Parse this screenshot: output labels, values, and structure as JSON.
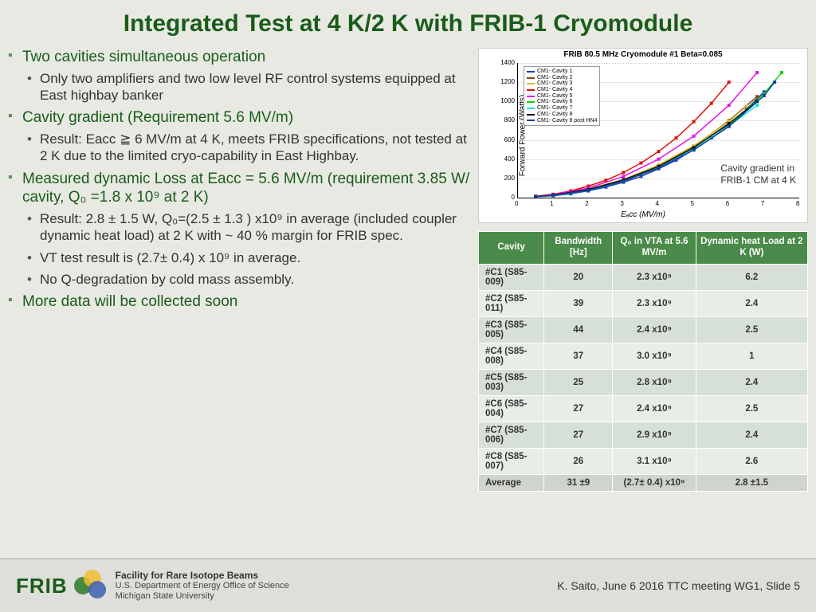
{
  "title": "Integrated Test at 4 K/2 K with FRIB-1 Cryomodule",
  "bullets": {
    "b1": "Two cavities simultaneous operation",
    "b1_1": "Only two amplifiers and two low level RF control systems equipped at East highbay banker",
    "b2": "Cavity gradient (Requirement 5.6 MV/m)",
    "b2_1": "Result: Eacc ≧ 6 MV/m at 4 K, meets FRIB specifications, not tested at 2 K due to the limited cryo-capability in East Highbay.",
    "b3": "Measured dynamic Loss at Eacc = 5.6 MV/m (requirement 3.85 W/ cavity, Q₀ =1.8 x 10⁹ at 2 K)",
    "b3_1": "Result: 2.8 ± 1.5 W, Q₀=(2.5 ± 1.3 ) x10⁹ in average (included coupler dynamic heat load) at 2 K with ~ 40 % margin for FRIB spec.",
    "b3_2": "VT test result is (2.7± 0.4) x 10⁹ in average.",
    "b3_3": "No Q-degradation by cold mass assembly.",
    "b4": "More data will be collected soon"
  },
  "chart": {
    "title": "FRIB 80.5 MHz Cryomodule #1 Beta=0.085",
    "ylabel": "Forward Power (Watts)",
    "xlabel": "Eₐcc (MV/m)",
    "xlim": [
      0,
      8
    ],
    "ylim": [
      0,
      1400
    ],
    "xticks": [
      0,
      1,
      2,
      3,
      4,
      5,
      6,
      7,
      8
    ],
    "yticks": [
      0,
      200,
      400,
      600,
      800,
      1000,
      1200,
      1400
    ],
    "legend_items": [
      {
        "label": "CM1- Cavity 1",
        "color": "#1f3fbf"
      },
      {
        "label": "CM1- Cavity 2",
        "color": "#8b4513"
      },
      {
        "label": "CM1- Cavity 3",
        "color": "#d4c030"
      },
      {
        "label": "CM1- Cavity 4",
        "color": "#e01010"
      },
      {
        "label": "CM1- Cavity 5",
        "color": "#e810e8"
      },
      {
        "label": "CM1- Cavity 6",
        "color": "#10d010"
      },
      {
        "label": "CM1- Cavity 7",
        "color": "#10e0e0"
      },
      {
        "label": "CM1- Cavity 8",
        "color": "#101010"
      },
      {
        "label": "CM1- Cavity 8 post HN4",
        "color": "#1040a0"
      }
    ],
    "series": [
      {
        "color": "#1f3fbf",
        "pts": [
          [
            0.5,
            8
          ],
          [
            1,
            20
          ],
          [
            1.5,
            40
          ],
          [
            2,
            70
          ],
          [
            2.5,
            110
          ],
          [
            3,
            160
          ],
          [
            3.5,
            220
          ],
          [
            4,
            300
          ],
          [
            4.5,
            390
          ],
          [
            5,
            500
          ],
          [
            5.5,
            620
          ],
          [
            6,
            760
          ],
          [
            6.5,
            920
          ],
          [
            7,
            1100
          ]
        ]
      },
      {
        "color": "#8b4513",
        "pts": [
          [
            0.5,
            10
          ],
          [
            1,
            25
          ],
          [
            2,
            80
          ],
          [
            3,
            180
          ],
          [
            4,
            330
          ],
          [
            5,
            530
          ],
          [
            6,
            800
          ],
          [
            6.8,
            1050
          ]
        ]
      },
      {
        "color": "#d4c030",
        "pts": [
          [
            0.5,
            12
          ],
          [
            1,
            28
          ],
          [
            2,
            90
          ],
          [
            3,
            190
          ],
          [
            4,
            340
          ],
          [
            5,
            540
          ],
          [
            6,
            790
          ],
          [
            6.5,
            950
          ]
        ]
      },
      {
        "color": "#e01010",
        "pts": [
          [
            0.5,
            15
          ],
          [
            1,
            35
          ],
          [
            1.5,
            70
          ],
          [
            2,
            120
          ],
          [
            2.5,
            180
          ],
          [
            3,
            260
          ],
          [
            3.5,
            360
          ],
          [
            4,
            480
          ],
          [
            4.5,
            620
          ],
          [
            5,
            790
          ],
          [
            5.5,
            980
          ],
          [
            6,
            1200
          ]
        ]
      },
      {
        "color": "#e810e8",
        "pts": [
          [
            0.5,
            10
          ],
          [
            1,
            30
          ],
          [
            2,
            100
          ],
          [
            3,
            220
          ],
          [
            4,
            400
          ],
          [
            5,
            640
          ],
          [
            6,
            960
          ],
          [
            6.8,
            1300
          ]
        ]
      },
      {
        "color": "#10d010",
        "pts": [
          [
            0.5,
            8
          ],
          [
            1,
            22
          ],
          [
            2,
            75
          ],
          [
            3,
            170
          ],
          [
            4,
            310
          ],
          [
            5,
            500
          ],
          [
            6,
            750
          ],
          [
            7,
            1080
          ],
          [
            7.5,
            1300
          ]
        ]
      },
      {
        "color": "#10e0e0",
        "pts": [
          [
            0.5,
            9
          ],
          [
            1,
            24
          ],
          [
            2,
            78
          ],
          [
            3,
            175
          ],
          [
            4,
            315
          ],
          [
            5,
            505
          ],
          [
            6,
            745
          ],
          [
            6.8,
            960
          ]
        ]
      },
      {
        "color": "#101010",
        "pts": [
          [
            0.5,
            11
          ],
          [
            1,
            26
          ],
          [
            2,
            85
          ],
          [
            3,
            185
          ],
          [
            4,
            325
          ],
          [
            5,
            520
          ],
          [
            6,
            770
          ],
          [
            6.8,
            1000
          ]
        ]
      },
      {
        "color": "#1040a0",
        "pts": [
          [
            0.5,
            10
          ],
          [
            1,
            23
          ],
          [
            2,
            76
          ],
          [
            3,
            172
          ],
          [
            4,
            308
          ],
          [
            5,
            495
          ],
          [
            6,
            740
          ],
          [
            7,
            1060
          ],
          [
            7.3,
            1200
          ]
        ]
      }
    ],
    "caption_l1": "Cavity gradient in",
    "caption_l2": "FRIB-1 CM at 4 K"
  },
  "table": {
    "headers": [
      "Cavity",
      "Bandwidth [Hz]",
      "Q₀ in VTA at 5.6 MV/m",
      "Dynamic heat Load at 2 K  (W)"
    ],
    "rows": [
      [
        "#C1 (S85-009)",
        "20",
        "2.3 x10⁹",
        "6.2"
      ],
      [
        "#C2 (S85-011)",
        "39",
        "2.3 x10⁹",
        "2.4"
      ],
      [
        "#C3 (S85-005)",
        "44",
        "2.4 x10⁹",
        "2.5"
      ],
      [
        "#C4 (S85-008)",
        "37",
        "3.0 x10⁹",
        "1"
      ],
      [
        "#C5 (S85-003)",
        "25",
        "2.8 x10⁹",
        "2.4"
      ],
      [
        "#C6 (S85-004)",
        "27",
        "2.4 x10⁹",
        "2.5"
      ],
      [
        "#C7 (S85-006)",
        "27",
        "2.9 x10⁹",
        "2.4"
      ],
      [
        "#C8 (S85-007)",
        "26",
        "3.1 x10⁹",
        "2.6"
      ]
    ],
    "avg": [
      "Average",
      "31 ±9",
      "(2.7± 0.4) x10⁹",
      "2.8 ±1.5"
    ]
  },
  "footer": {
    "logo": "FRIB",
    "inst_l1": "Facility for Rare Isotope Beams",
    "inst_l2": "U.S. Department of Energy Office of Science",
    "inst_l3": "Michigan State University",
    "slide": "K. Saito, June 6 2016 TTC meeting WG1, Slide 5"
  }
}
